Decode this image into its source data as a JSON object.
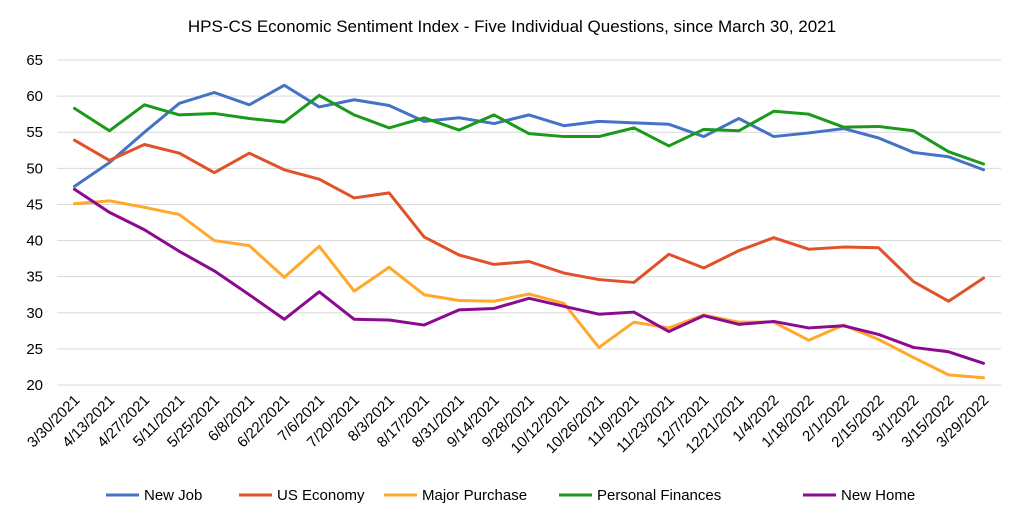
{
  "chart_data": {
    "type": "line",
    "title": "HPS-CS Economic Sentiment Index - Five Individual Questions, since March 30, 2021",
    "xlabel": "",
    "ylabel": "",
    "ylim": [
      20,
      65
    ],
    "yticks": [
      "20",
      "25",
      "30",
      "35",
      "40",
      "45",
      "50",
      "55",
      "60",
      "65"
    ],
    "grid": true,
    "legend_position": "bottom",
    "categories": [
      "3/30/2021",
      "4/13/2021",
      "4/27/2021",
      "5/11/2021",
      "5/25/2021",
      "6/8/2021",
      "6/22/2021",
      "7/6/2021",
      "7/20/2021",
      "8/3/2021",
      "8/17/2021",
      "8/31/2021",
      "9/14/2021",
      "9/28/2021",
      "10/12/2021",
      "10/26/2021",
      "11/9/2021",
      "11/23/2021",
      "12/7/2021",
      "12/21/2021",
      "1/4/2022",
      "1/18/2022",
      "2/1/2022",
      "2/15/2022",
      "3/1/2022",
      "3/15/2022",
      "3/29/2022"
    ],
    "series": [
      {
        "name": "New Job",
        "color": "#4472c4",
        "values": [
          47.5,
          50.8,
          55.0,
          59.0,
          60.5,
          58.8,
          61.5,
          58.5,
          59.5,
          58.7,
          56.5,
          57.0,
          56.2,
          57.4,
          55.9,
          56.5,
          56.3,
          56.1,
          54.4,
          56.9,
          54.4,
          54.9,
          55.5,
          54.2,
          52.2,
          51.6,
          49.8
        ]
      },
      {
        "name": "US Economy",
        "color": "#e0522a",
        "values": [
          53.9,
          51.1,
          53.3,
          52.1,
          49.4,
          52.1,
          49.8,
          48.5,
          45.9,
          46.6,
          40.5,
          38.0,
          36.7,
          37.1,
          35.5,
          34.6,
          34.2,
          38.1,
          36.2,
          38.6,
          40.4,
          38.8,
          39.1,
          39.0,
          34.3,
          31.6,
          34.8
        ]
      },
      {
        "name": "Major Purchase",
        "color": "#ffa82b",
        "values": [
          45.1,
          45.5,
          44.6,
          43.6,
          40.0,
          39.3,
          34.9,
          39.2,
          33.0,
          36.3,
          32.5,
          31.7,
          31.6,
          32.6,
          31.3,
          25.2,
          28.7,
          27.9,
          29.7,
          28.7,
          28.7,
          26.2,
          28.3,
          26.3,
          23.8,
          21.4,
          21.0
        ]
      },
      {
        "name": "Personal Finances",
        "color": "#1a9a1a",
        "values": [
          58.3,
          55.2,
          58.8,
          57.4,
          57.6,
          56.9,
          56.4,
          60.1,
          57.4,
          55.6,
          57.0,
          55.3,
          57.4,
          54.8,
          54.4,
          54.4,
          55.6,
          53.1,
          55.4,
          55.2,
          57.9,
          57.5,
          55.7,
          55.8,
          55.2,
          52.3,
          50.6
        ]
      },
      {
        "name": "New Home",
        "color": "#8b0a8f",
        "values": [
          47.1,
          43.9,
          41.5,
          38.5,
          35.8,
          32.5,
          29.1,
          32.9,
          29.1,
          29.0,
          28.3,
          30.4,
          30.6,
          32.0,
          30.9,
          29.8,
          30.1,
          27.4,
          29.6,
          28.4,
          28.8,
          27.9,
          28.2,
          27.0,
          25.2,
          24.6,
          23.0
        ]
      }
    ]
  }
}
